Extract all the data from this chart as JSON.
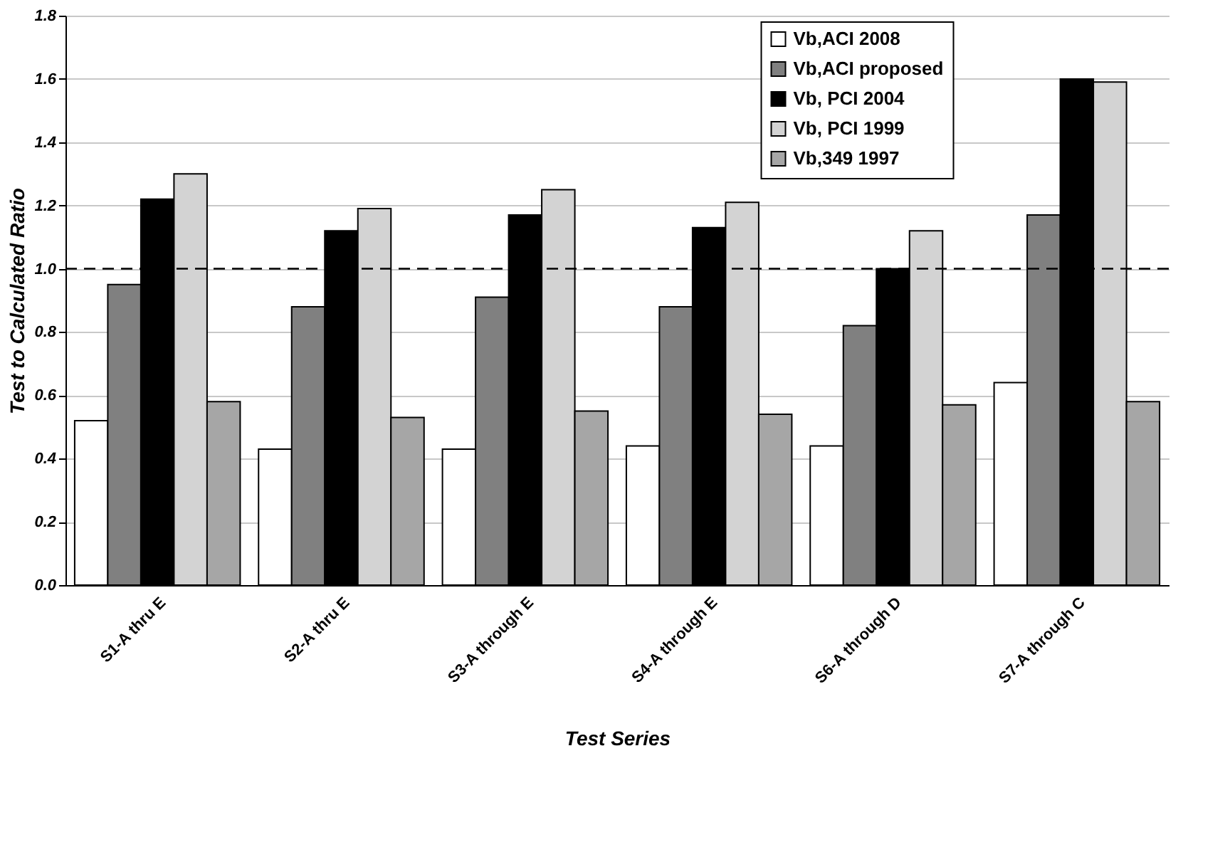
{
  "chart_data": {
    "type": "bar",
    "xlabel": "Test Series",
    "ylabel": "Test to Calculated Ratio",
    "categories": [
      "S1-A thru E",
      "S2-A thru E",
      "S3-A through E",
      "S4-A through E",
      "S6-A through D",
      "S7-A through C"
    ],
    "series": [
      {
        "name": "Vb,ACI 2008",
        "color": "#ffffff",
        "values": [
          0.52,
          0.43,
          0.43,
          0.44,
          0.44,
          0.64
        ]
      },
      {
        "name": "Vb,ACI proposed",
        "color": "#808080",
        "values": [
          0.95,
          0.88,
          0.91,
          0.88,
          0.82,
          1.17
        ]
      },
      {
        "name": "Vb, PCI 2004",
        "color": "#000000",
        "values": [
          1.22,
          1.12,
          1.17,
          1.13,
          1.0,
          1.6
        ]
      },
      {
        "name": "Vb, PCI 1999",
        "color": "#d3d3d3",
        "values": [
          1.3,
          1.19,
          1.25,
          1.21,
          1.12,
          1.59
        ]
      },
      {
        "name": "Vb,349 1997",
        "color": "#a6a6a6",
        "values": [
          0.58,
          0.53,
          0.55,
          0.54,
          0.57,
          0.58
        ]
      }
    ],
    "ylim": [
      0,
      1.8
    ],
    "yticks": [
      {
        "value": 0,
        "label": "0.0"
      },
      {
        "value": 0.2,
        "label": "0.2"
      },
      {
        "value": 0.4,
        "label": "0.4"
      },
      {
        "value": 0.6,
        "label": "0.6"
      },
      {
        "value": 0.8,
        "label": "0.8"
      },
      {
        "value": 1,
        "label": "1.0"
      },
      {
        "value": 1.2,
        "label": "1.2"
      },
      {
        "value": 1.4,
        "label": "1.4"
      },
      {
        "value": 1.6,
        "label": "1.6"
      },
      {
        "value": 1.8,
        "label": "1.8"
      }
    ],
    "ref_lines": [
      {
        "axis": "y",
        "value": 1,
        "line_style": "dashed",
        "color": "#000000"
      }
    ],
    "grid": "y",
    "legend": "top right"
  }
}
